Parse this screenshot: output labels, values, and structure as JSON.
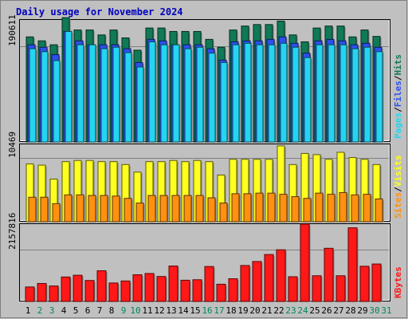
{
  "title": "Daily usage for November 2024",
  "colors": {
    "background": "#c0c0c0",
    "title_text": "#0000c0",
    "hits": "#0f7a55",
    "files": "#2b50ef",
    "pages": "#24d4f0",
    "visits": "#ffff20",
    "sites": "#ff9010",
    "kbytes": "#ff1818",
    "weekend_day": "#00865a",
    "weekday_day": "#000000"
  },
  "chart_data": [
    {
      "type": "bar",
      "panel": "hits-files-pages",
      "y_tick_label": "190611",
      "ylim": [
        0,
        249000
      ],
      "grid": true,
      "legend": "right-vertical",
      "legend_labels": [
        "Pages",
        "/",
        "Files",
        "/",
        "Hits"
      ],
      "categories": [
        "1",
        "2",
        "3",
        "4",
        "5",
        "6",
        "7",
        "8",
        "9",
        "10",
        "11",
        "12",
        "13",
        "14",
        "15",
        "16",
        "17",
        "18",
        "19",
        "20",
        "21",
        "22",
        "23",
        "24",
        "25",
        "26",
        "27",
        "28",
        "29",
        "30",
        "31"
      ],
      "series": [
        {
          "name": "Hits",
          "values": [
            213000,
            205000,
            197000,
            252000,
            227000,
            227000,
            217000,
            227000,
            211000,
            186000,
            231000,
            231000,
            224000,
            224000,
            224000,
            208000,
            192000,
            227000,
            235000,
            238000,
            238000,
            245000,
            217000,
            203000,
            231000,
            235000,
            235000,
            213000,
            227000,
            214000,
            0
          ]
        },
        {
          "name": "Files",
          "values": [
            197000,
            192000,
            177000,
            224000,
            205000,
            197000,
            197000,
            197000,
            189000,
            161000,
            208000,
            205000,
            197000,
            197000,
            197000,
            189000,
            166000,
            203000,
            205000,
            205000,
            208000,
            213000,
            200000,
            180000,
            205000,
            208000,
            205000,
            197000,
            200000,
            192000,
            0
          ]
        },
        {
          "name": "Pages",
          "values": [
            189000,
            183000,
            165000,
            224000,
            197000,
            197000,
            189000,
            192000,
            181000,
            152000,
            203000,
            197000,
            197000,
            189000,
            192000,
            180000,
            161000,
            197000,
            200000,
            197000,
            197000,
            200000,
            192000,
            171000,
            197000,
            197000,
            197000,
            189000,
            192000,
            183000,
            0
          ]
        }
      ]
    },
    {
      "type": "bar",
      "panel": "visits-sites",
      "y_tick_label": "10469",
      "ylim": [
        0,
        13400
      ],
      "grid": true,
      "legend": "right-vertical",
      "legend_labels": [
        "Sites",
        "/",
        "Visits"
      ],
      "categories": [
        "1",
        "2",
        "3",
        "4",
        "5",
        "6",
        "7",
        "8",
        "9",
        "10",
        "11",
        "12",
        "13",
        "14",
        "15",
        "16",
        "17",
        "18",
        "19",
        "20",
        "21",
        "22",
        "23",
        "24",
        "25",
        "26",
        "27",
        "28",
        "29",
        "30",
        "31"
      ],
      "series": [
        {
          "name": "Visits",
          "values": [
            9900,
            9700,
            7300,
            10300,
            10500,
            10500,
            10300,
            10300,
            9800,
            8500,
            10300,
            10300,
            10500,
            10300,
            10500,
            10300,
            8000,
            10700,
            10700,
            10700,
            10700,
            13000,
            9800,
            11700,
            11500,
            10700,
            11900,
            11000,
            10700,
            9800,
            0
          ]
        },
        {
          "name": "Sites",
          "values": [
            4200,
            4200,
            3100,
            4600,
            4600,
            4500,
            4500,
            4400,
            4000,
            3200,
            4500,
            4500,
            4500,
            4500,
            4500,
            4100,
            3200,
            4800,
            4800,
            4900,
            4900,
            4700,
            4300,
            4000,
            4900,
            4700,
            5000,
            4600,
            4700,
            3900,
            0
          ]
        }
      ]
    },
    {
      "type": "bar",
      "panel": "kbytes",
      "y_tick_label": "2157816",
      "ylim": [
        0,
        3130000
      ],
      "grid": true,
      "legend": "right-vertical",
      "legend_labels": [
        "KBytes"
      ],
      "categories": [
        "1",
        "2",
        "3",
        "4",
        "5",
        "6",
        "7",
        "8",
        "9",
        "10",
        "11",
        "12",
        "13",
        "14",
        "15",
        "16",
        "17",
        "18",
        "19",
        "20",
        "21",
        "22",
        "23",
        "24",
        "25",
        "26",
        "27",
        "28",
        "29",
        "30",
        "31"
      ],
      "series": [
        {
          "name": "KBytes",
          "values": [
            580000,
            720000,
            620000,
            980000,
            1050000,
            840000,
            1230000,
            740000,
            820000,
            1070000,
            1120000,
            1000000,
            1420000,
            850000,
            870000,
            1400000,
            690000,
            910000,
            1440000,
            1600000,
            1880000,
            2070000,
            990000,
            3100000,
            1030000,
            2130000,
            1030000,
            2950000,
            1410000,
            1500000,
            0
          ]
        }
      ]
    }
  ],
  "x_day_labels": [
    "1",
    "2",
    "3",
    "4",
    "5",
    "6",
    "7",
    "8",
    "9",
    "10",
    "11",
    "12",
    "13",
    "14",
    "15",
    "16",
    "17",
    "18",
    "19",
    "20",
    "21",
    "22",
    "23",
    "24",
    "25",
    "26",
    "27",
    "28",
    "29",
    "30",
    "31"
  ],
  "weekend_days": [
    "2",
    "3",
    "9",
    "10",
    "16",
    "17",
    "23",
    "24",
    "30",
    "31"
  ]
}
